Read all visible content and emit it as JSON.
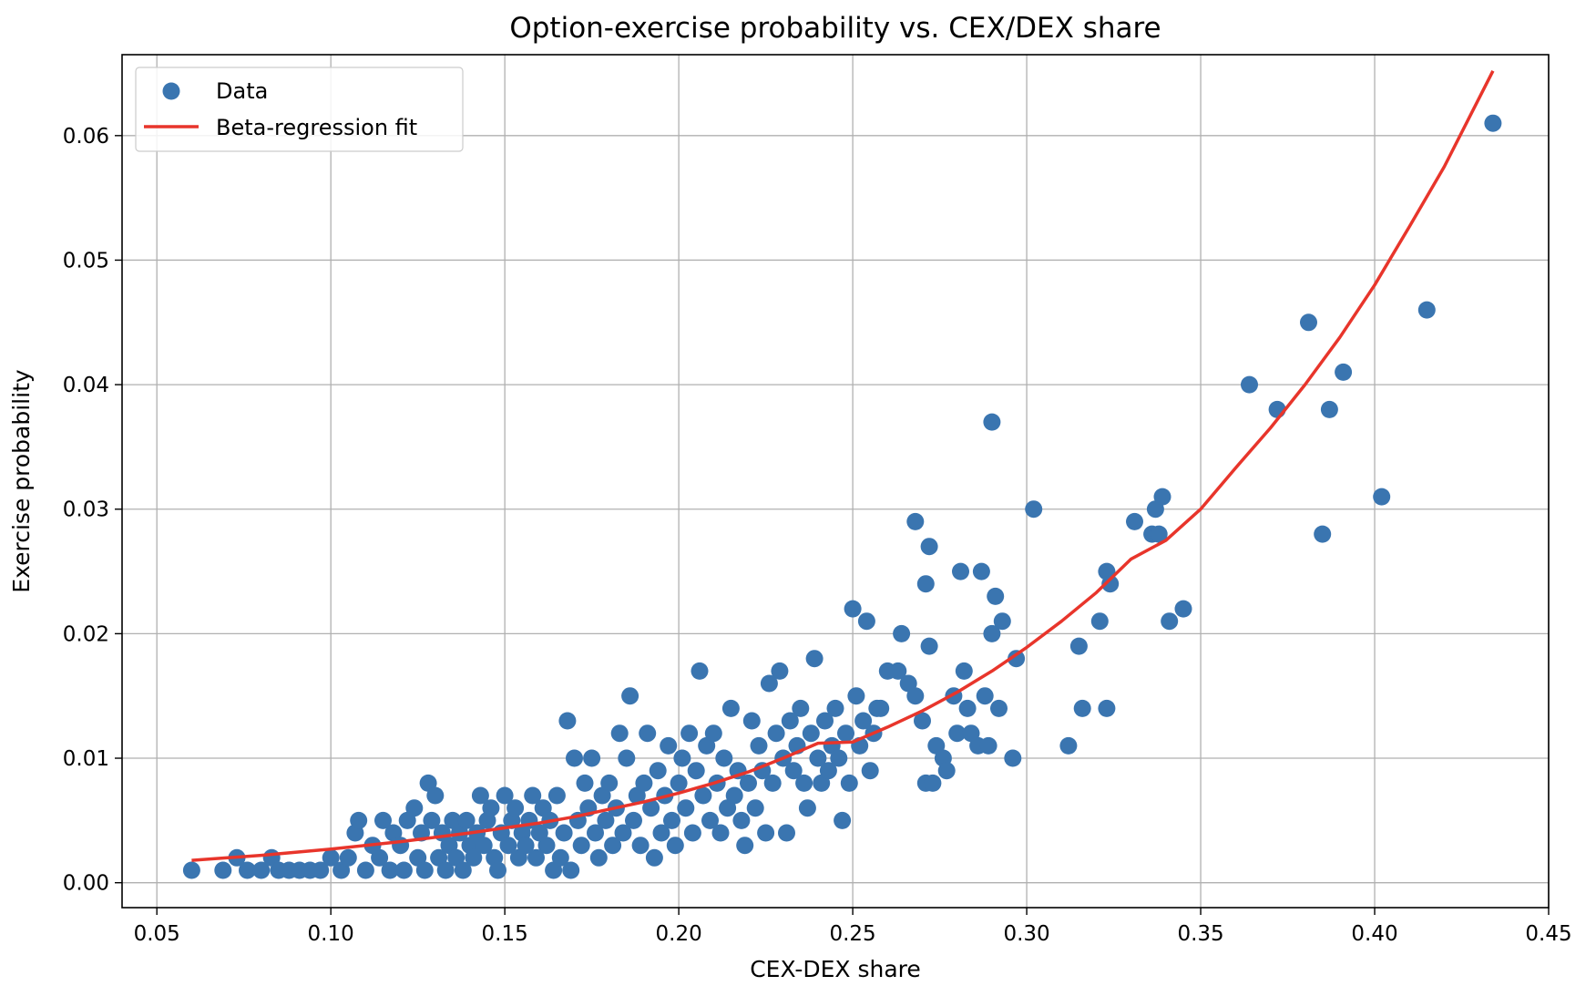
{
  "chart_data": {
    "type": "scatter",
    "title": "Option-exercise probability vs. CEX/DEX share",
    "xlabel": "CEX-DEX share",
    "ylabel": "Exercise probability",
    "xlim": [
      0.04,
      0.45
    ],
    "ylim": [
      -0.002,
      0.0665
    ],
    "xticks": [
      0.05,
      0.1,
      0.15,
      0.2,
      0.25,
      0.3,
      0.35,
      0.4,
      0.45
    ],
    "xtick_labels": [
      "0.05",
      "0.10",
      "0.15",
      "0.20",
      "0.25",
      "0.30",
      "0.35",
      "0.40",
      "0.45"
    ],
    "yticks": [
      0.0,
      0.01,
      0.02,
      0.03,
      0.04,
      0.05,
      0.06
    ],
    "ytick_labels": [
      "0.00",
      "0.01",
      "0.02",
      "0.03",
      "0.04",
      "0.05",
      "0.06"
    ],
    "grid": true,
    "legend_position": "top-left",
    "colors": {
      "scatter": "#3a75b0",
      "fit": "#e8352b"
    },
    "series": [
      {
        "name": "Data",
        "kind": "scatter",
        "points": [
          [
            0.06,
            0.001
          ],
          [
            0.069,
            0.001
          ],
          [
            0.073,
            0.002
          ],
          [
            0.076,
            0.001
          ],
          [
            0.08,
            0.001
          ],
          [
            0.083,
            0.002
          ],
          [
            0.085,
            0.001
          ],
          [
            0.088,
            0.001
          ],
          [
            0.091,
            0.001
          ],
          [
            0.094,
            0.001
          ],
          [
            0.097,
            0.001
          ],
          [
            0.1,
            0.002
          ],
          [
            0.103,
            0.001
          ],
          [
            0.105,
            0.002
          ],
          [
            0.107,
            0.004
          ],
          [
            0.108,
            0.005
          ],
          [
            0.11,
            0.001
          ],
          [
            0.112,
            0.003
          ],
          [
            0.114,
            0.002
          ],
          [
            0.115,
            0.005
          ],
          [
            0.117,
            0.001
          ],
          [
            0.118,
            0.004
          ],
          [
            0.12,
            0.003
          ],
          [
            0.121,
            0.001
          ],
          [
            0.122,
            0.005
          ],
          [
            0.124,
            0.006
          ],
          [
            0.125,
            0.002
          ],
          [
            0.126,
            0.004
          ],
          [
            0.127,
            0.001
          ],
          [
            0.128,
            0.008
          ],
          [
            0.129,
            0.005
          ],
          [
            0.13,
            0.007
          ],
          [
            0.131,
            0.002
          ],
          [
            0.132,
            0.004
          ],
          [
            0.133,
            0.001
          ],
          [
            0.134,
            0.003
          ],
          [
            0.135,
            0.005
          ],
          [
            0.136,
            0.002
          ],
          [
            0.137,
            0.004
          ],
          [
            0.138,
            0.001
          ],
          [
            0.139,
            0.005
          ],
          [
            0.14,
            0.003
          ],
          [
            0.141,
            0.002
          ],
          [
            0.142,
            0.004
          ],
          [
            0.143,
            0.007
          ],
          [
            0.144,
            0.003
          ],
          [
            0.145,
            0.005
          ],
          [
            0.146,
            0.006
          ],
          [
            0.147,
            0.002
          ],
          [
            0.148,
            0.001
          ],
          [
            0.149,
            0.004
          ],
          [
            0.15,
            0.007
          ],
          [
            0.151,
            0.003
          ],
          [
            0.152,
            0.005
          ],
          [
            0.153,
            0.006
          ],
          [
            0.154,
            0.002
          ],
          [
            0.155,
            0.004
          ],
          [
            0.156,
            0.003
          ],
          [
            0.157,
            0.005
          ],
          [
            0.158,
            0.007
          ],
          [
            0.159,
            0.002
          ],
          [
            0.16,
            0.004
          ],
          [
            0.161,
            0.006
          ],
          [
            0.162,
            0.003
          ],
          [
            0.163,
            0.005
          ],
          [
            0.164,
            0.001
          ],
          [
            0.165,
            0.007
          ],
          [
            0.166,
            0.002
          ],
          [
            0.167,
            0.004
          ],
          [
            0.168,
            0.013
          ],
          [
            0.169,
            0.001
          ],
          [
            0.17,
            0.01
          ],
          [
            0.171,
            0.005
          ],
          [
            0.172,
            0.003
          ],
          [
            0.173,
            0.008
          ],
          [
            0.174,
            0.006
          ],
          [
            0.175,
            0.01
          ],
          [
            0.176,
            0.004
          ],
          [
            0.177,
            0.002
          ],
          [
            0.178,
            0.007
          ],
          [
            0.179,
            0.005
          ],
          [
            0.18,
            0.008
          ],
          [
            0.181,
            0.003
          ],
          [
            0.182,
            0.006
          ],
          [
            0.183,
            0.012
          ],
          [
            0.184,
            0.004
          ],
          [
            0.185,
            0.01
          ],
          [
            0.186,
            0.015
          ],
          [
            0.187,
            0.005
          ],
          [
            0.188,
            0.007
          ],
          [
            0.189,
            0.003
          ],
          [
            0.19,
            0.008
          ],
          [
            0.191,
            0.012
          ],
          [
            0.192,
            0.006
          ],
          [
            0.193,
            0.002
          ],
          [
            0.194,
            0.009
          ],
          [
            0.195,
            0.004
          ],
          [
            0.196,
            0.007
          ],
          [
            0.197,
            0.011
          ],
          [
            0.198,
            0.005
          ],
          [
            0.199,
            0.003
          ],
          [
            0.2,
            0.008
          ],
          [
            0.201,
            0.01
          ],
          [
            0.202,
            0.006
          ],
          [
            0.203,
            0.012
          ],
          [
            0.204,
            0.004
          ],
          [
            0.205,
            0.009
          ],
          [
            0.206,
            0.017
          ],
          [
            0.207,
            0.007
          ],
          [
            0.208,
            0.011
          ],
          [
            0.209,
            0.005
          ],
          [
            0.21,
            0.012
          ],
          [
            0.211,
            0.008
          ],
          [
            0.212,
            0.004
          ],
          [
            0.213,
            0.01
          ],
          [
            0.214,
            0.006
          ],
          [
            0.215,
            0.014
          ],
          [
            0.216,
            0.007
          ],
          [
            0.217,
            0.009
          ],
          [
            0.218,
            0.005
          ],
          [
            0.219,
            0.003
          ],
          [
            0.22,
            0.008
          ],
          [
            0.221,
            0.013
          ],
          [
            0.222,
            0.006
          ],
          [
            0.223,
            0.011
          ],
          [
            0.224,
            0.009
          ],
          [
            0.225,
            0.004
          ],
          [
            0.226,
            0.016
          ],
          [
            0.227,
            0.008
          ],
          [
            0.228,
            0.012
          ],
          [
            0.229,
            0.017
          ],
          [
            0.23,
            0.01
          ],
          [
            0.231,
            0.004
          ],
          [
            0.232,
            0.013
          ],
          [
            0.233,
            0.009
          ],
          [
            0.234,
            0.011
          ],
          [
            0.235,
            0.014
          ],
          [
            0.236,
            0.008
          ],
          [
            0.237,
            0.006
          ],
          [
            0.238,
            0.012
          ],
          [
            0.239,
            0.018
          ],
          [
            0.24,
            0.01
          ],
          [
            0.241,
            0.008
          ],
          [
            0.242,
            0.013
          ],
          [
            0.243,
            0.009
          ],
          [
            0.244,
            0.011
          ],
          [
            0.245,
            0.014
          ],
          [
            0.246,
            0.01
          ],
          [
            0.247,
            0.005
          ],
          [
            0.248,
            0.012
          ],
          [
            0.249,
            0.008
          ],
          [
            0.25,
            0.022
          ],
          [
            0.251,
            0.015
          ],
          [
            0.252,
            0.011
          ],
          [
            0.253,
            0.013
          ],
          [
            0.254,
            0.021
          ],
          [
            0.255,
            0.009
          ],
          [
            0.256,
            0.012
          ],
          [
            0.257,
            0.014
          ],
          [
            0.258,
            0.014
          ],
          [
            0.26,
            0.017
          ],
          [
            0.263,
            0.017
          ],
          [
            0.264,
            0.02
          ],
          [
            0.266,
            0.016
          ],
          [
            0.268,
            0.015
          ],
          [
            0.268,
            0.029
          ],
          [
            0.27,
            0.013
          ],
          [
            0.271,
            0.008
          ],
          [
            0.271,
            0.024
          ],
          [
            0.272,
            0.027
          ],
          [
            0.272,
            0.019
          ],
          [
            0.273,
            0.008
          ],
          [
            0.274,
            0.011
          ],
          [
            0.276,
            0.01
          ],
          [
            0.277,
            0.009
          ],
          [
            0.279,
            0.015
          ],
          [
            0.28,
            0.012
          ],
          [
            0.281,
            0.025
          ],
          [
            0.282,
            0.017
          ],
          [
            0.283,
            0.014
          ],
          [
            0.284,
            0.012
          ],
          [
            0.286,
            0.011
          ],
          [
            0.287,
            0.025
          ],
          [
            0.288,
            0.015
          ],
          [
            0.289,
            0.011
          ],
          [
            0.29,
            0.037
          ],
          [
            0.29,
            0.02
          ],
          [
            0.291,
            0.023
          ],
          [
            0.292,
            0.014
          ],
          [
            0.293,
            0.021
          ],
          [
            0.296,
            0.01
          ],
          [
            0.297,
            0.018
          ],
          [
            0.302,
            0.03
          ],
          [
            0.312,
            0.011
          ],
          [
            0.315,
            0.019
          ],
          [
            0.316,
            0.014
          ],
          [
            0.321,
            0.021
          ],
          [
            0.323,
            0.014
          ],
          [
            0.323,
            0.025
          ],
          [
            0.324,
            0.024
          ],
          [
            0.331,
            0.029
          ],
          [
            0.336,
            0.028
          ],
          [
            0.337,
            0.03
          ],
          [
            0.338,
            0.028
          ],
          [
            0.339,
            0.031
          ],
          [
            0.341,
            0.021
          ],
          [
            0.345,
            0.022
          ],
          [
            0.364,
            0.04
          ],
          [
            0.372,
            0.038
          ],
          [
            0.381,
            0.045
          ],
          [
            0.385,
            0.028
          ],
          [
            0.387,
            0.038
          ],
          [
            0.391,
            0.041
          ],
          [
            0.402,
            0.031
          ],
          [
            0.415,
            0.046
          ],
          [
            0.434,
            0.061
          ]
        ]
      },
      {
        "name": "Beta-regression fit",
        "kind": "line",
        "points": [
          [
            0.06,
            0.0018
          ],
          [
            0.08,
            0.0022
          ],
          [
            0.1,
            0.0027
          ],
          [
            0.12,
            0.0033
          ],
          [
            0.14,
            0.004
          ],
          [
            0.15,
            0.0044
          ],
          [
            0.16,
            0.0048
          ],
          [
            0.17,
            0.0053
          ],
          [
            0.18,
            0.0059
          ],
          [
            0.19,
            0.0065
          ],
          [
            0.2,
            0.0072
          ],
          [
            0.21,
            0.008
          ],
          [
            0.22,
            0.0089
          ],
          [
            0.23,
            0.01
          ],
          [
            0.24,
            0.0112
          ],
          [
            0.25,
            0.0113
          ],
          [
            0.26,
            0.0125
          ],
          [
            0.27,
            0.0138
          ],
          [
            0.28,
            0.0153
          ],
          [
            0.29,
            0.017
          ],
          [
            0.3,
            0.0189
          ],
          [
            0.31,
            0.021
          ],
          [
            0.32,
            0.0233
          ],
          [
            0.33,
            0.026
          ],
          [
            0.34,
            0.0275
          ],
          [
            0.35,
            0.03
          ],
          [
            0.36,
            0.0333
          ],
          [
            0.37,
            0.0365
          ],
          [
            0.38,
            0.04
          ],
          [
            0.39,
            0.0438
          ],
          [
            0.4,
            0.048
          ],
          [
            0.41,
            0.0527
          ],
          [
            0.42,
            0.0575
          ],
          [
            0.434,
            0.0652
          ]
        ]
      }
    ]
  }
}
